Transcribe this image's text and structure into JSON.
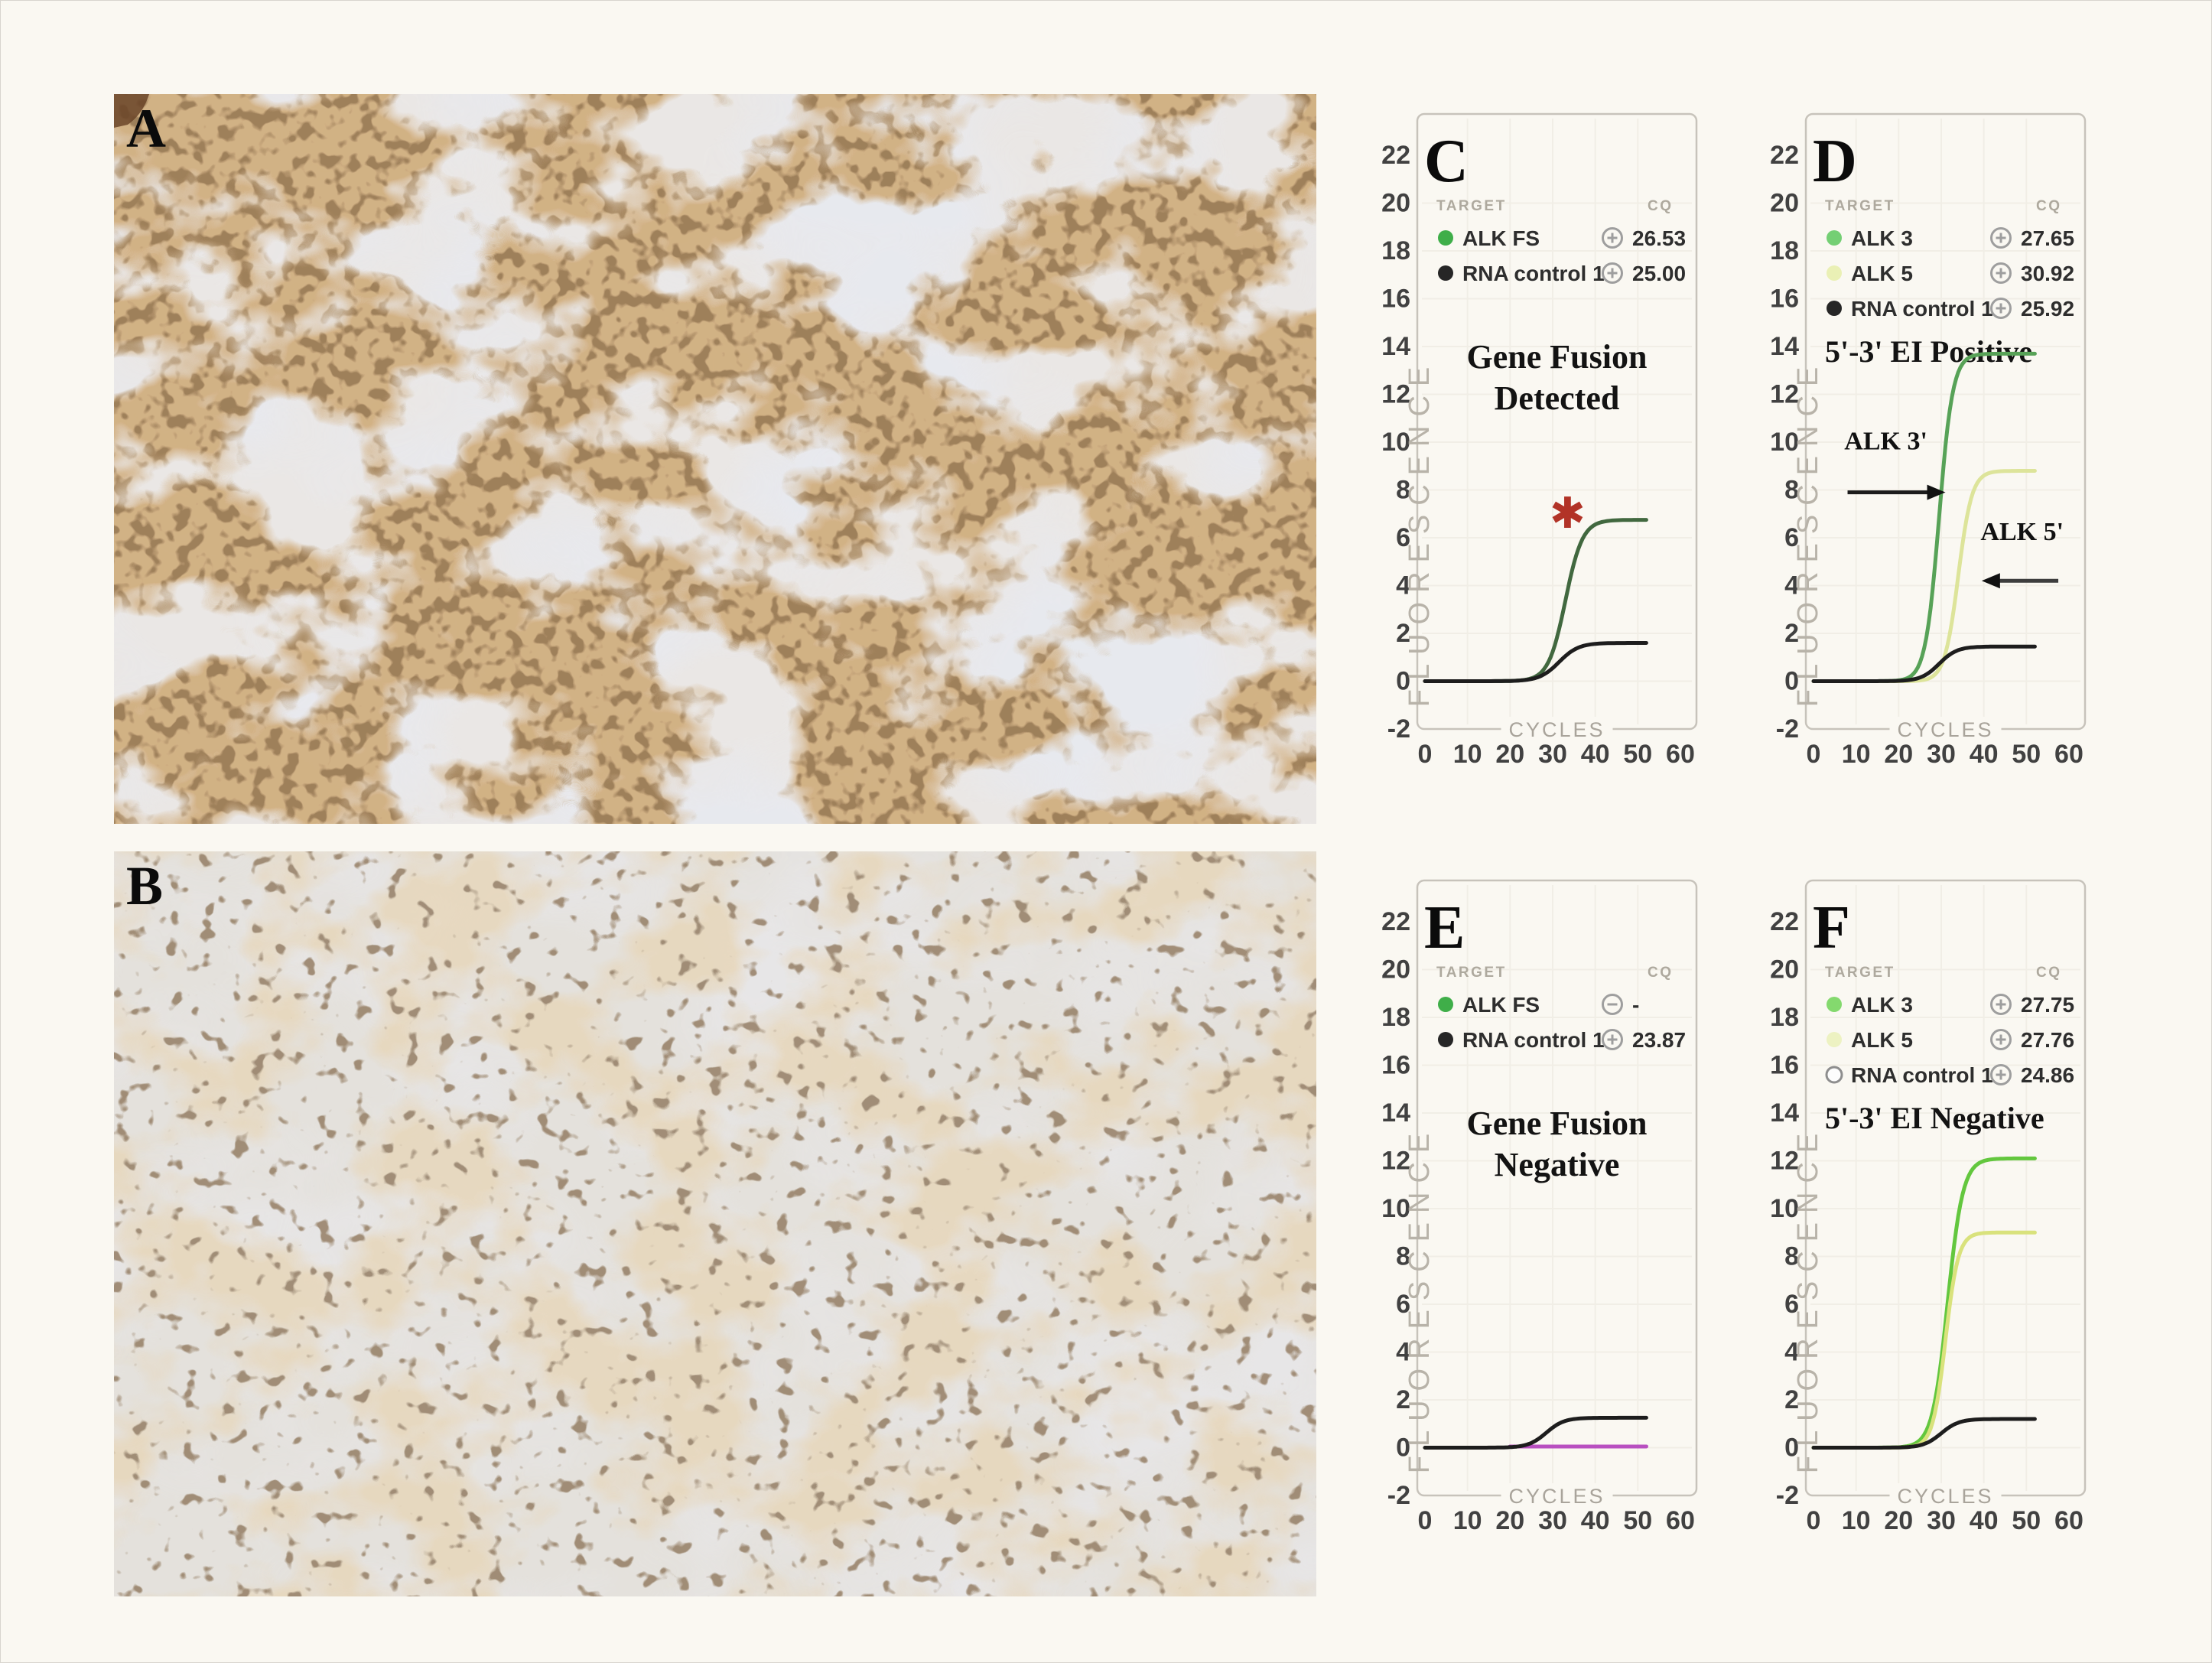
{
  "page": {
    "background": "#faf8f2",
    "type": "scientific-figure"
  },
  "histology": {
    "panel_a_label": "A",
    "panel_b_label": "B"
  },
  "chart_data": [
    {
      "id": "C",
      "type": "line",
      "panel_label": "C",
      "caption_lines": [
        "Gene Fusion",
        "Detected"
      ],
      "caption_align": "center",
      "xlabel": "CYCLES",
      "ylabel": "FLUORESCENCE",
      "legend_header": {
        "target": "TARGET",
        "cq": "CQ"
      },
      "xlim": [
        0,
        60
      ],
      "ylim": [
        -2,
        22
      ],
      "xticks": [
        0,
        10,
        20,
        30,
        40,
        50,
        60
      ],
      "yticks": [
        22,
        20,
        18,
        16,
        14,
        12,
        10,
        8,
        6,
        4,
        2,
        0,
        -2
      ],
      "grid": true,
      "series": [
        {
          "name": "ALK FS",
          "dot_color": "#3fae49",
          "curve_color": "#41683f",
          "cq": "26.53",
          "status": "amplified",
          "plateau": 6.75,
          "mid": 33,
          "k": 2.0,
          "x_end": 52
        },
        {
          "name": "RNA control 1",
          "dot_color": "#262626",
          "curve_color": "#1d1d1d",
          "cq": "25.00",
          "status": "amplified",
          "plateau": 1.6,
          "mid": 31.5,
          "k": 2.3,
          "x_end": 52
        }
      ],
      "annotations": [
        {
          "kind": "asterisk",
          "glyph": "✱",
          "color": "#b23327",
          "x": 33.5,
          "y": 7.0
        }
      ]
    },
    {
      "id": "D",
      "type": "line",
      "panel_label": "D",
      "caption_lines": [
        "5'-3' EI Positive"
      ],
      "caption_align": "left",
      "xlabel": "CYCLES",
      "ylabel": "FLUORESCENCE",
      "legend_header": {
        "target": "TARGET",
        "cq": "CQ"
      },
      "xlim": [
        0,
        60
      ],
      "ylim": [
        -2,
        22
      ],
      "xticks": [
        0,
        10,
        20,
        30,
        40,
        50,
        60
      ],
      "yticks": [
        22,
        20,
        18,
        16,
        14,
        12,
        10,
        8,
        6,
        4,
        2,
        0,
        -2
      ],
      "grid": true,
      "series": [
        {
          "name": "ALK 3",
          "dot_color": "#74cf74",
          "curve_color": "#57a257",
          "cq": "27.65",
          "status": "amplified",
          "plateau": 13.7,
          "mid": 29.5,
          "k": 1.6,
          "x_end": 52
        },
        {
          "name": "ALK 5",
          "dot_color": "#eaf0b5",
          "curve_color": "#dde49a",
          "cq": "30.92",
          "status": "amplified",
          "plateau": 8.8,
          "mid": 34,
          "k": 1.6,
          "x_end": 52
        },
        {
          "name": "RNA control 1",
          "dot_color": "#262626",
          "curve_color": "#1d1d1d",
          "cq": "25.92",
          "status": "amplified",
          "plateau": 1.45,
          "mid": 29.5,
          "k": 2.1,
          "x_end": 52
        }
      ],
      "annotations": [
        {
          "kind": "arrow-right",
          "label": "ALK 3'",
          "x_from": 8,
          "x_to": 31,
          "y": 7.9,
          "label_x": 17,
          "label_y": 9.7
        },
        {
          "kind": "arrow-left",
          "label": "ALK 5'",
          "x_from": 57.5,
          "x_to": 39.5,
          "y": 4.2,
          "label_x": 49,
          "label_y": 5.9
        }
      ]
    },
    {
      "id": "E",
      "type": "line",
      "panel_label": "E",
      "caption_lines": [
        "Gene Fusion",
        "Negative"
      ],
      "caption_align": "center",
      "xlabel": "CYCLES",
      "ylabel": "FLUORESCENCE",
      "legend_header": {
        "target": "TARGET",
        "cq": "CQ"
      },
      "xlim": [
        0,
        60
      ],
      "ylim": [
        -2,
        22
      ],
      "xticks": [
        0,
        10,
        20,
        30,
        40,
        50,
        60
      ],
      "yticks": [
        22,
        20,
        18,
        16,
        14,
        12,
        10,
        8,
        6,
        4,
        2,
        0,
        -2
      ],
      "grid": true,
      "series": [
        {
          "name": "ALK FS",
          "dot_color": "#3fae49",
          "curve_color": "#b84fc0",
          "cq": "-",
          "status": "not-amplified",
          "flat": true,
          "level": 0.05,
          "x_start": 20,
          "x_end": 52
        },
        {
          "name": "RNA control 1",
          "dot_color": "#262626",
          "curve_color": "#1d1d1d",
          "cq": "23.87",
          "status": "amplified",
          "plateau": 1.25,
          "mid": 28.5,
          "k": 2.1,
          "x_end": 52
        }
      ],
      "annotations": []
    },
    {
      "id": "F",
      "type": "line",
      "panel_label": "F",
      "caption_lines": [
        "5'-3' EI Negative"
      ],
      "caption_align": "left",
      "xlabel": "CYCLES",
      "ylabel": "FLUORESCENCE",
      "legend_header": {
        "target": "TARGET",
        "cq": "CQ"
      },
      "xlim": [
        0,
        60
      ],
      "ylim": [
        -2,
        22
      ],
      "xticks": [
        0,
        10,
        20,
        30,
        40,
        50,
        60
      ],
      "yticks": [
        22,
        20,
        18,
        16,
        14,
        12,
        10,
        8,
        6,
        4,
        2,
        0,
        -2
      ],
      "grid": true,
      "series": [
        {
          "name": "ALK 3",
          "dot_color": "#84d96e",
          "curve_color": "#63c73e",
          "cq": "27.75",
          "status": "amplified",
          "plateau": 12.1,
          "mid": 31.5,
          "k": 1.8,
          "x_end": 52
        },
        {
          "name": "ALK 5",
          "dot_color": "#edf2c2",
          "curve_color": "#d9e27c",
          "cq": "27.76",
          "status": "amplified",
          "plateau": 9.0,
          "mid": 31,
          "k": 1.5,
          "x_end": 52
        },
        {
          "name": "RNA control 1",
          "dot_color": "#fdfdfd",
          "dot_ring": true,
          "curve_color": "#1d1d1d",
          "cq": "24.86",
          "status": "amplified",
          "plateau": 1.2,
          "mid": 30,
          "k": 2.1,
          "x_end": 52
        }
      ],
      "annotations": []
    }
  ]
}
